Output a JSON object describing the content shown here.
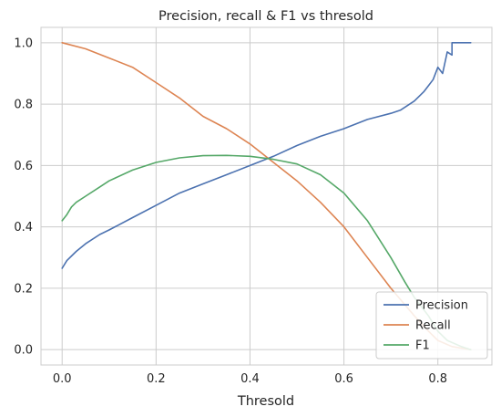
{
  "chart_data": {
    "type": "line",
    "title": "Precision, recall & F1 vs thresold",
    "xlabel": "Thresold",
    "ylabel": "",
    "xlim": [
      -0.045,
      0.915
    ],
    "ylim": [
      -0.05,
      1.05
    ],
    "xticks": [
      0.0,
      0.2,
      0.4,
      0.6,
      0.8
    ],
    "xtick_labels": [
      "0.0",
      "0.2",
      "0.4",
      "0.6",
      "0.8"
    ],
    "yticks": [
      0.0,
      0.2,
      0.4,
      0.6,
      0.8,
      1.0
    ],
    "ytick_labels": [
      "0.0",
      "0.2",
      "0.4",
      "0.6",
      "0.8",
      "1.0"
    ],
    "grid": true,
    "legend_position": "lower-right",
    "series": [
      {
        "name": "Precision",
        "color": "#4c72b0",
        "points": [
          [
            0.0,
            0.265
          ],
          [
            0.01,
            0.29
          ],
          [
            0.03,
            0.32
          ],
          [
            0.05,
            0.345
          ],
          [
            0.08,
            0.375
          ],
          [
            0.1,
            0.39
          ],
          [
            0.15,
            0.43
          ],
          [
            0.2,
            0.47
          ],
          [
            0.25,
            0.51
          ],
          [
            0.3,
            0.54
          ],
          [
            0.35,
            0.57
          ],
          [
            0.4,
            0.6
          ],
          [
            0.45,
            0.63
          ],
          [
            0.5,
            0.665
          ],
          [
            0.55,
            0.695
          ],
          [
            0.6,
            0.72
          ],
          [
            0.65,
            0.75
          ],
          [
            0.7,
            0.77
          ],
          [
            0.72,
            0.78
          ],
          [
            0.75,
            0.81
          ],
          [
            0.77,
            0.84
          ],
          [
            0.78,
            0.86
          ],
          [
            0.79,
            0.88
          ],
          [
            0.8,
            0.92
          ],
          [
            0.81,
            0.9
          ],
          [
            0.82,
            0.97
          ],
          [
            0.83,
            0.96
          ],
          [
            0.83,
            1.0
          ],
          [
            0.87,
            1.0
          ]
        ]
      },
      {
        "name": "Recall",
        "color": "#dd8452",
        "points": [
          [
            0.0,
            1.0
          ],
          [
            0.05,
            0.98
          ],
          [
            0.1,
            0.95
          ],
          [
            0.15,
            0.92
          ],
          [
            0.2,
            0.87
          ],
          [
            0.25,
            0.82
          ],
          [
            0.3,
            0.76
          ],
          [
            0.35,
            0.72
          ],
          [
            0.4,
            0.67
          ],
          [
            0.45,
            0.61
          ],
          [
            0.5,
            0.55
          ],
          [
            0.55,
            0.48
          ],
          [
            0.6,
            0.4
          ],
          [
            0.65,
            0.3
          ],
          [
            0.7,
            0.2
          ],
          [
            0.75,
            0.11
          ],
          [
            0.78,
            0.06
          ],
          [
            0.8,
            0.03
          ],
          [
            0.83,
            0.01
          ],
          [
            0.87,
            0.0
          ]
        ]
      },
      {
        "name": "F1",
        "color": "#55a868",
        "points": [
          [
            0.0,
            0.42
          ],
          [
            0.01,
            0.44
          ],
          [
            0.02,
            0.465
          ],
          [
            0.03,
            0.48
          ],
          [
            0.05,
            0.5
          ],
          [
            0.08,
            0.53
          ],
          [
            0.1,
            0.55
          ],
          [
            0.15,
            0.585
          ],
          [
            0.2,
            0.61
          ],
          [
            0.25,
            0.625
          ],
          [
            0.3,
            0.632
          ],
          [
            0.35,
            0.633
          ],
          [
            0.4,
            0.63
          ],
          [
            0.45,
            0.62
          ],
          [
            0.5,
            0.605
          ],
          [
            0.55,
            0.57
          ],
          [
            0.6,
            0.51
          ],
          [
            0.65,
            0.42
          ],
          [
            0.7,
            0.3
          ],
          [
            0.73,
            0.22
          ],
          [
            0.75,
            0.17
          ],
          [
            0.78,
            0.11
          ],
          [
            0.8,
            0.06
          ],
          [
            0.82,
            0.03
          ],
          [
            0.85,
            0.01
          ],
          [
            0.87,
            0.0
          ]
        ]
      }
    ]
  }
}
